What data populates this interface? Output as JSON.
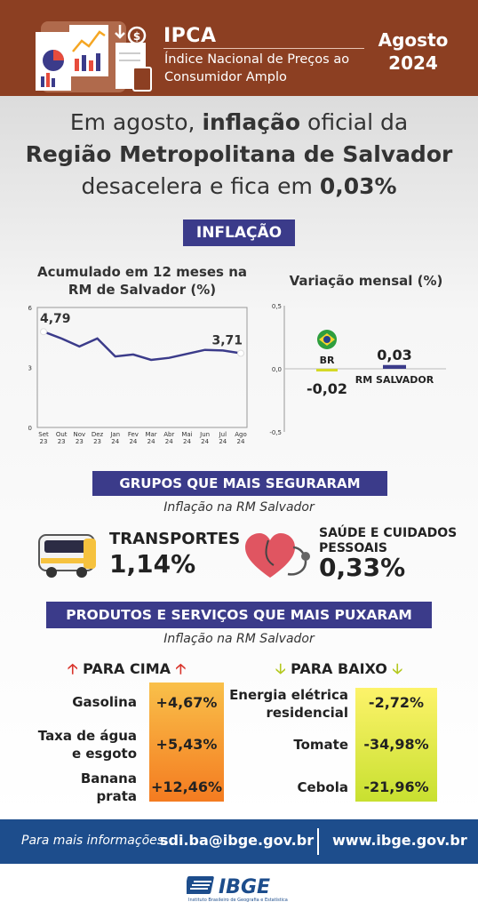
{
  "header": {
    "title": "IPCA",
    "subtitle": "Índice Nacional de Preços ao Consumidor Amplo",
    "month": "Agosto",
    "year": "2024",
    "bg_color": "#8c3f22"
  },
  "headline": {
    "line1_pre": "Em agosto, ",
    "line1_bold": "inflação",
    "line1_post": " oficial da",
    "line2": "Região Metropolitana de Salvador",
    "line3_pre": "desacelera e fica em ",
    "line3_bold": "0,03%"
  },
  "section_inflation": {
    "label": "INFLAÇÃO",
    "color": "#3b3b8a"
  },
  "chart_data": [
    {
      "type": "line",
      "title": "Acumulado em 12 meses na RM de Salvador (%)",
      "x": [
        "Set 23",
        "Out 23",
        "Nov 23",
        "Dez 23",
        "Jan 24",
        "Fev 24",
        "Mar 24",
        "Abr 24",
        "Mai 24",
        "Jun 24",
        "Jul 24",
        "Ago 24"
      ],
      "x_top": [
        "Set",
        "Out",
        "Nov",
        "Dez",
        "Jan",
        "Fev",
        "Mar",
        "Abr",
        "Mai",
        "Jun",
        "Jul",
        "Ago"
      ],
      "x_bottom": [
        "23",
        "23",
        "23",
        "23",
        "24",
        "24",
        "24",
        "24",
        "24",
        "24",
        "24",
        "24"
      ],
      "values": [
        4.79,
        4.45,
        4.05,
        4.45,
        3.55,
        3.65,
        3.38,
        3.48,
        3.68,
        3.88,
        3.85,
        3.71
      ],
      "labeled": {
        "first": "4,79",
        "last": "3,71"
      },
      "yticks": [
        "0",
        "3",
        "6"
      ],
      "ylim": [
        0,
        6
      ],
      "line_color": "#3b3b8a"
    },
    {
      "type": "bar",
      "title": "Variação mensal (%)",
      "categories": [
        "BR",
        "RM SALVADOR"
      ],
      "values": [
        -0.02,
        0.03
      ],
      "value_labels": [
        "-0,02",
        "0,03"
      ],
      "yticks": [
        "0,5",
        "0,0",
        "-0,5"
      ],
      "ylim": [
        -0.5,
        0.5
      ],
      "colors": [
        "#d4d926",
        "#3b3b8a"
      ]
    }
  ],
  "section_groups": {
    "label": "GRUPOS QUE MAIS SEGURARAM",
    "subtitle": "Inflação na RM Salvador",
    "items": [
      {
        "name": "TRANSPORTES",
        "value": "1,14%",
        "icon": "bus-icon"
      },
      {
        "name": "SAÚDE E CUIDADOS PESSOAIS",
        "name_line1": "SAÚDE E CUIDADOS",
        "name_line2": "PESSOAIS",
        "value": "0,33%",
        "icon": "heart-stethoscope-icon"
      }
    ]
  },
  "section_products": {
    "label": "PRODUTOS E SERVIÇOS QUE MAIS PUXARAM",
    "subtitle": "Inflação na RM Salvador",
    "up": {
      "label": "PARA CIMA",
      "items": [
        {
          "name": "Gasolina",
          "value": "+4,67%"
        },
        {
          "name": "Taxa de água e esgoto",
          "name_l1": "Taxa de água",
          "name_l2": "e esgoto",
          "value": "+5,43%"
        },
        {
          "name": "Banana prata",
          "name_l1": "Banana",
          "name_l2": "prata",
          "value": "+12,46%"
        }
      ]
    },
    "down": {
      "label": "PARA BAIXO",
      "items": [
        {
          "name": "Energia elétrica residencial",
          "name_l1": "Energia elétrica",
          "name_l2": "residencial",
          "value": "-2,72%"
        },
        {
          "name": "Tomate",
          "value": "-34,98%"
        },
        {
          "name": "Cebola",
          "value": "-21,96%"
        }
      ]
    }
  },
  "footer": {
    "label": "Para mais informações:",
    "email": "sdi.ba@ibge.gov.br",
    "site": "www.ibge.gov.br",
    "bg_color": "#1d4d8c"
  },
  "logo": {
    "text": "IBGE",
    "tagline": "Instituto Brasileiro de Geografia e Estatística"
  }
}
